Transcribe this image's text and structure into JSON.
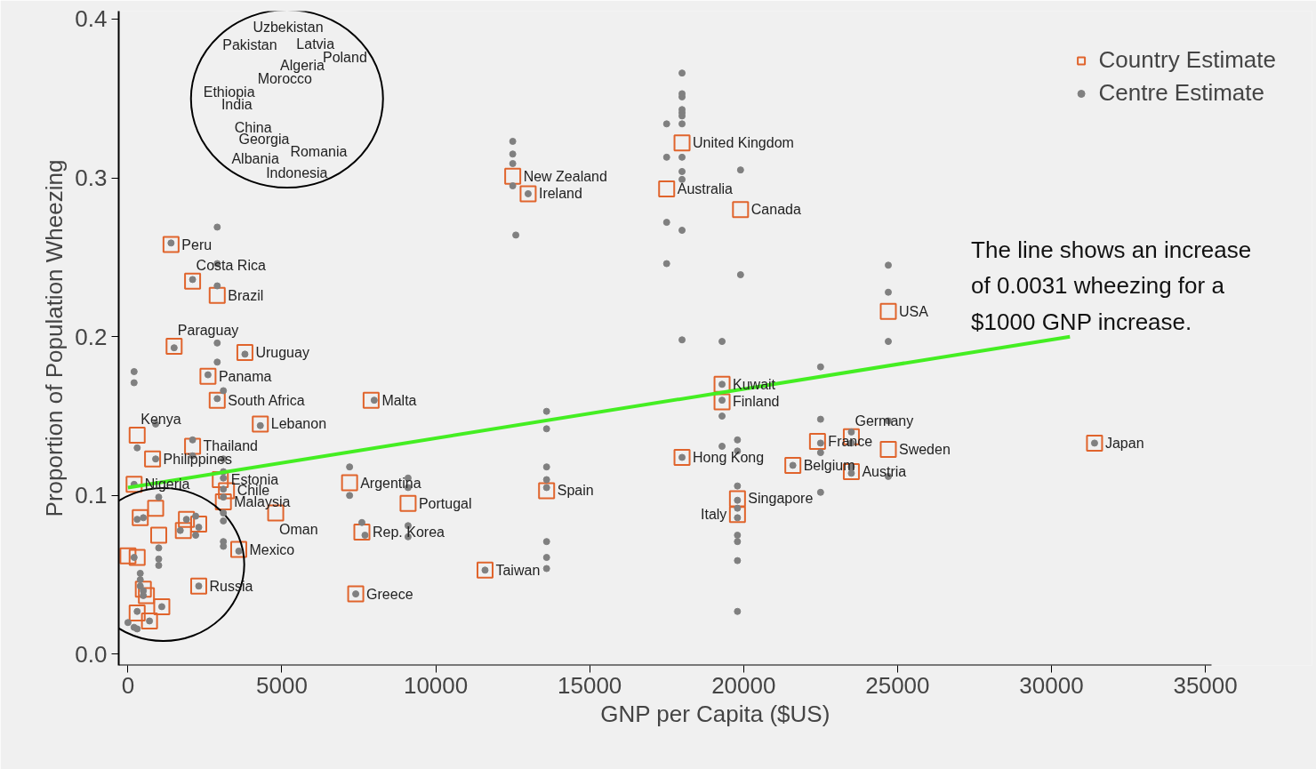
{
  "chart_data": {
    "type": "scatter",
    "xlabel": "GNP per Capita ($US)",
    "ylabel": "Proportion of Population Wheezing",
    "xlim": [
      -300,
      35200
    ],
    "ylim": [
      -0.007,
      0.405
    ],
    "xticks": [
      0,
      5000,
      10000,
      15000,
      20000,
      25000,
      30000,
      35000
    ],
    "yticks": [
      {
        "value": 0,
        "label": "0.0"
      },
      0.1,
      0.2,
      0.3,
      0.4
    ],
    "grid": false,
    "legend": "top right",
    "annotations": [
      "The line shows an increase\nof 0.0031 wheezing for a\n$1000 GNP increase.",
      "Uzbekistan",
      "Pakistan",
      "Latvia",
      "Poland",
      "Algeria",
      "Morocco",
      "Ethiopia",
      "India",
      "China",
      "Georgia",
      "Romania",
      "Albania",
      "Indonesia"
    ],
    "series": [
      {
        "name": "Country Estimate",
        "marker": "square",
        "color": "#e0642c",
        "x": [
          1400,
          2100,
          2900,
          1500,
          3800,
          2600,
          2900,
          4300,
          7900,
          300,
          2100,
          800,
          200,
          3000,
          3200,
          3100,
          4800,
          3600,
          2300,
          7200,
          9100,
          7600,
          7400,
          11600,
          13600,
          12500,
          13000,
          18000,
          17500,
          19900,
          19300,
          19300,
          18000,
          19800,
          19800,
          21600,
          22400,
          23500,
          23500,
          24700,
          24700,
          31400,
          400,
          900,
          1900,
          1800,
          2300,
          1000,
          0,
          300,
          500,
          600,
          1100,
          300,
          700
        ],
        "values": [
          0.258,
          0.235,
          0.226,
          0.194,
          0.19,
          0.175,
          0.16,
          0.145,
          0.16,
          0.138,
          0.131,
          0.123,
          0.107,
          0.11,
          0.103,
          0.096,
          0.089,
          0.066,
          0.043,
          0.108,
          0.095,
          0.077,
          0.038,
          0.053,
          0.103,
          0.301,
          0.29,
          0.322,
          0.293,
          0.28,
          0.17,
          0.159,
          0.124,
          0.098,
          0.088,
          0.119,
          0.134,
          0.137,
          0.115,
          0.129,
          0.216,
          0.133,
          0.086,
          0.092,
          0.085,
          0.078,
          0.082,
          0.075,
          0.062,
          0.061,
          0.041,
          0.037,
          0.03,
          0.026,
          0.021
        ],
        "value_labels": [
          "Peru",
          "Costa Rica",
          "Brazil",
          "Paraguay",
          "Uruguay",
          "Panama",
          "South Africa",
          "Lebanon",
          "Malta",
          "Kenya",
          "Thailand",
          "Philippines",
          "Nigeria",
          "Estonia",
          "Chile",
          "Malaysia",
          "Oman",
          "Mexico",
          "Russia",
          "Argentina",
          "Portugal",
          "Rep. Korea",
          "Greece",
          "Taiwan",
          "Spain",
          "New Zealand",
          "Ireland",
          "United Kingdom",
          "Australia",
          "Canada",
          "Kuwait",
          "Finland",
          "Hong Kong",
          "Singapore",
          "Italy",
          "Belgium",
          "France",
          "Germany",
          "Austria",
          "Sweden",
          "USA",
          "Japan",
          null,
          null,
          null,
          null,
          null,
          null,
          null,
          null,
          null,
          null,
          null,
          null,
          null
        ]
      },
      {
        "name": "Centre Estimate",
        "marker": "circle",
        "color": "#808080",
        "x": [
          2900,
          1400,
          2900,
          2100,
          2900,
          2900,
          1500,
          3800,
          2900,
          200,
          200,
          2600,
          3100,
          2900,
          900,
          4300,
          2100,
          300,
          900,
          2100,
          3100,
          3100,
          3100,
          200,
          3100,
          3100,
          1000,
          3100,
          3100,
          500,
          300,
          1900,
          2200,
          2300,
          1700,
          2200,
          3100,
          3100,
          3600,
          1000,
          200,
          1000,
          1000,
          400,
          400,
          400,
          500,
          2300,
          500,
          1100,
          300,
          700,
          0,
          200,
          300,
          8000,
          7200,
          7200,
          9100,
          9100,
          9100,
          9100,
          7600,
          7700,
          7400,
          11600,
          13600,
          13600,
          13600,
          13600,
          13600,
          13600,
          13600,
          13600,
          12500,
          12500,
          12500,
          12500,
          13000,
          12600,
          18000,
          18000,
          18000,
          18000,
          18000,
          18000,
          18000,
          18000,
          18000,
          18000,
          18000,
          17500,
          17500,
          17500,
          17500,
          19900,
          19900,
          18000,
          19300,
          22500,
          19300,
          19300,
          19300,
          22500,
          19800,
          19300,
          19800,
          22500,
          22500,
          23500,
          23500,
          18000,
          21600,
          23500,
          23500,
          22500,
          19800,
          19800,
          19800,
          19800,
          19800,
          19800,
          19800,
          19800,
          24700,
          24700,
          24700,
          24700,
          24700,
          31400
        ],
        "values": [
          0.269,
          0.259,
          0.246,
          0.236,
          0.232,
          0.196,
          0.193,
          0.189,
          0.184,
          0.178,
          0.171,
          0.176,
          0.166,
          0.161,
          0.145,
          0.144,
          0.135,
          0.13,
          0.123,
          0.125,
          0.123,
          0.115,
          0.111,
          0.107,
          0.104,
          0.099,
          0.099,
          0.089,
          0.084,
          0.086,
          0.085,
          0.085,
          0.087,
          0.08,
          0.078,
          0.075,
          0.071,
          0.068,
          0.065,
          0.067,
          0.061,
          0.06,
          0.056,
          0.051,
          0.047,
          0.043,
          0.04,
          0.043,
          0.037,
          0.03,
          0.027,
          0.021,
          0.02,
          0.017,
          0.016,
          0.16,
          0.118,
          0.1,
          0.111,
          0.105,
          0.081,
          0.074,
          0.083,
          0.075,
          0.038,
          0.053,
          0.153,
          0.142,
          0.118,
          0.11,
          0.105,
          0.071,
          0.061,
          0.054,
          0.323,
          0.315,
          0.309,
          0.295,
          0.29,
          0.264,
          0.366,
          0.353,
          0.351,
          0.343,
          0.341,
          0.339,
          0.334,
          0.313,
          0.304,
          0.299,
          0.267,
          0.334,
          0.313,
          0.272,
          0.246,
          0.305,
          0.239,
          0.198,
          0.197,
          0.181,
          0.17,
          0.16,
          0.15,
          0.148,
          0.135,
          0.131,
          0.128,
          0.133,
          0.127,
          0.14,
          0.133,
          0.124,
          0.119,
          0.118,
          0.114,
          0.102,
          0.106,
          0.097,
          0.092,
          0.086,
          0.075,
          0.071,
          0.059,
          0.027,
          0.245,
          0.228,
          0.197,
          0.147,
          0.112,
          0.133
        ]
      },
      {
        "type": "line",
        "color": "#44ee22",
        "x": [
          0,
          30600
        ],
        "values": [
          0.105,
          0.2
        ]
      }
    ]
  }
}
